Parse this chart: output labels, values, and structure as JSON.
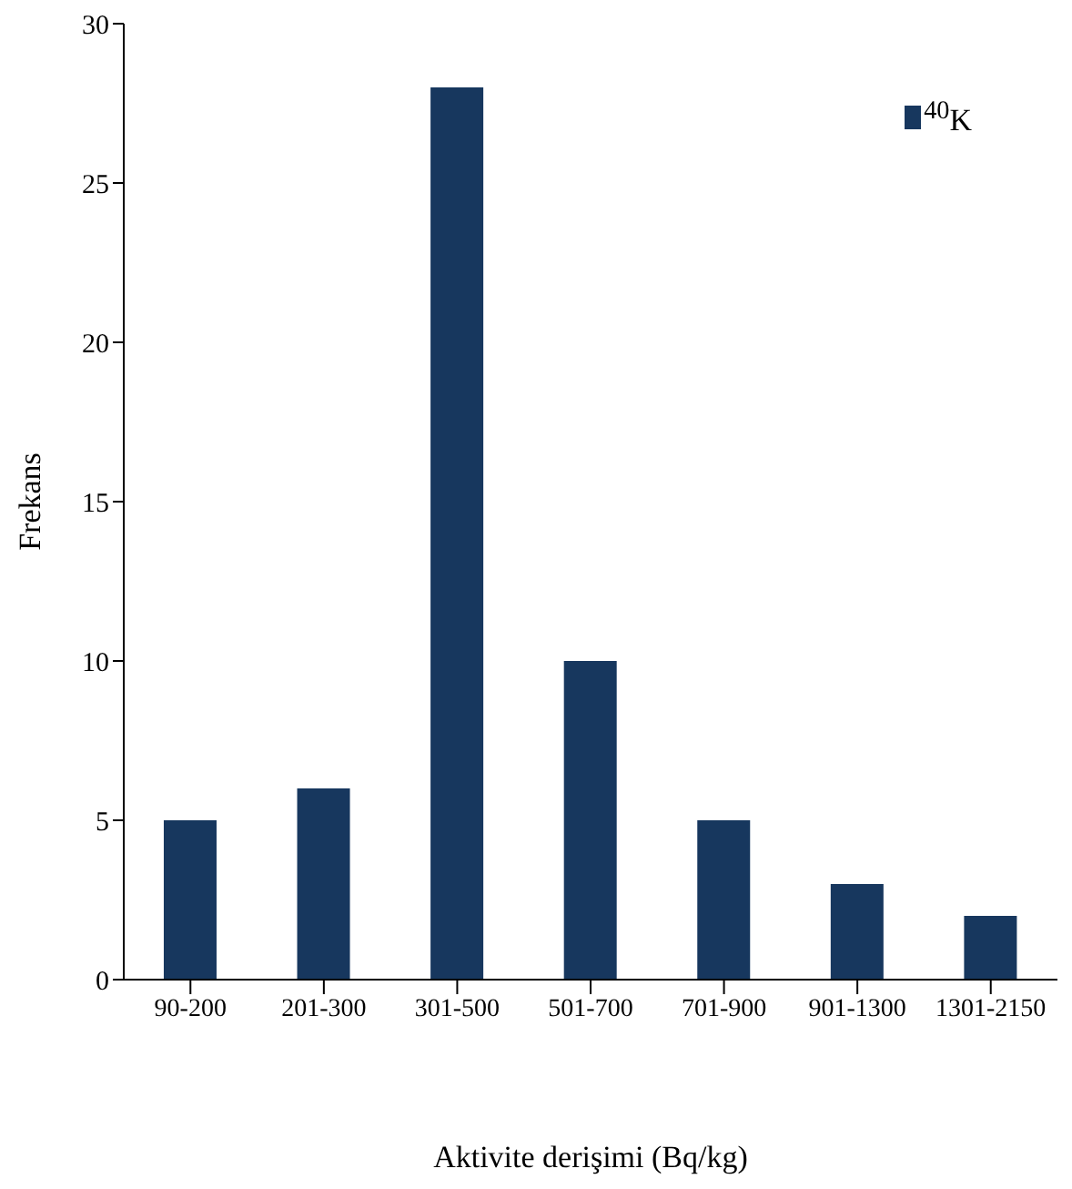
{
  "chart_data": {
    "type": "bar",
    "xlabel": "Aktivite derişimi (Bq/kg)",
    "ylabel": "Frekans",
    "categories": [
      "90-200",
      "201-300",
      "301-500",
      "501-700",
      "701-900",
      "901-1300",
      "1301-2150"
    ],
    "series": [
      {
        "name": "$^{40}$K",
        "color": "#17375e",
        "values": [
          5,
          6,
          28,
          10,
          5,
          3,
          2
        ]
      }
    ],
    "ylim": [
      0,
      30
    ],
    "yticks": [
      0,
      5,
      10,
      15,
      20,
      25,
      30
    ],
    "grid": false,
    "legend": "top right"
  }
}
